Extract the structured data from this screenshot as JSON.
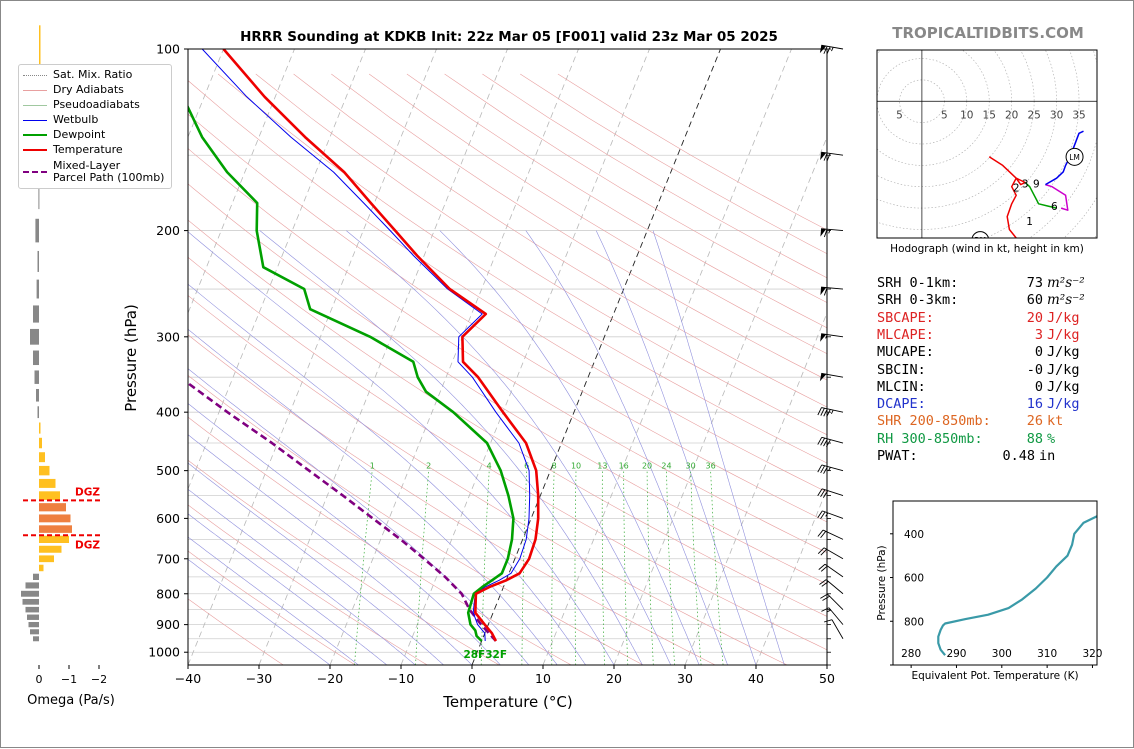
{
  "header": {
    "title": "HRRR Sounding at KDKB Init: 22z Mar 05 [F001] valid 23z Mar 05 2025",
    "brand": "TROPICALTIDBITS.COM"
  },
  "legend": {
    "items": [
      {
        "label": "Sat. Mix. Ratio",
        "color": "#888888",
        "style": "dotted"
      },
      {
        "label": "Dry Adiabats",
        "color": "#e8a0a0",
        "style": "solid"
      },
      {
        "label": "Pseudoadiabats",
        "color": "#a0c8a0",
        "style": "solid"
      },
      {
        "label": "Wetbulb",
        "color": "#0000ee",
        "style": "solid"
      },
      {
        "label": "Dewpoint",
        "color": "#00a000",
        "style": "solid"
      },
      {
        "label": "Temperature",
        "color": "#ee0000",
        "style": "solid"
      },
      {
        "label": "Mixed-Layer",
        "color": "#800080",
        "style": "dashed"
      },
      {
        "label": "Parcel Path (100mb)",
        "color": "",
        "style": "none"
      }
    ]
  },
  "chart_data": [
    {
      "type": "line",
      "name": "skewt",
      "xlabel": "Temperature (°C)",
      "ylabel": "Pressure (hPa)",
      "xlim": [
        -40,
        50
      ],
      "ylim": [
        1050,
        100
      ],
      "y_scale": "log",
      "x_ticks": [
        -40,
        -30,
        -20,
        -10,
        0,
        10,
        20,
        30,
        40,
        50
      ],
      "x_tick_labels": [
        "−40",
        "−30",
        "−20",
        "−10",
        "0",
        "10",
        "20",
        "30",
        "40",
        "50"
      ],
      "y_ticks": [
        100,
        200,
        300,
        400,
        500,
        600,
        700,
        800,
        900,
        1000
      ],
      "y_tick_labels": [
        "100",
        "200",
        "300",
        "400",
        "500",
        "600",
        "700",
        "800",
        "900",
        "1000"
      ],
      "mixing_ratio_labels": [
        "1",
        "2",
        "4",
        "6",
        "8",
        "10",
        "13",
        "16",
        "20",
        "24",
        "30",
        "36"
      ],
      "mixing_ratio_values": [
        1,
        2,
        4,
        6,
        8,
        10,
        13,
        16,
        20,
        24,
        30,
        36
      ],
      "series": [
        {
          "key": "temperature",
          "color": "#ee0000",
          "p": [
            958,
            930,
            900,
            860,
            800,
            780,
            760,
            740,
            700,
            650,
            600,
            550,
            500,
            450,
            400,
            350,
            330,
            300,
            275,
            250,
            220,
            200,
            180,
            160,
            140,
            120,
            100
          ],
          "t": [
            2.0,
            1.0,
            -0.5,
            -2.5,
            -3.5,
            -2.0,
            0.0,
            1.5,
            2.0,
            1.8,
            1.0,
            -0.3,
            -2.0,
            -5.0,
            -10.0,
            -15.5,
            -18.5,
            -20.0,
            -18.0,
            -24.5,
            -31.0,
            -35.5,
            -40.5,
            -46.0,
            -53.5,
            -61.5,
            -70.0
          ]
        },
        {
          "key": "wetbulb",
          "color": "#0000ee",
          "p": [
            958,
            930,
            900,
            860,
            800,
            780,
            760,
            740,
            700,
            650,
            600,
            550,
            500,
            450,
            400,
            350,
            330,
            300,
            275,
            250,
            220,
            200,
            180,
            160,
            140,
            120,
            100
          ],
          "t": [
            0.5,
            0.0,
            -1.5,
            -2.8,
            -3.6,
            -2.6,
            -1.0,
            0.3,
            0.7,
            0.5,
            -0.3,
            -1.5,
            -3.0,
            -6.0,
            -11.0,
            -16.3,
            -19.2,
            -20.5,
            -18.5,
            -24.8,
            -31.5,
            -36.2,
            -41.5,
            -47.5,
            -55.5,
            -64.0,
            -73.0
          ]
        },
        {
          "key": "dewpoint",
          "color": "#00a000",
          "p": [
            958,
            940,
            920,
            900,
            860,
            800,
            780,
            760,
            740,
            700,
            650,
            600,
            550,
            500,
            450,
            400,
            370,
            350,
            330,
            300,
            270,
            250,
            230,
            200,
            180,
            160,
            140,
            120,
            100
          ],
          "t": [
            0.0,
            -1.0,
            -1.5,
            -2.5,
            -3.5,
            -3.8,
            -3.0,
            -2.0,
            -1.0,
            -1.0,
            -1.5,
            -2.5,
            -4.5,
            -7.0,
            -10.5,
            -17.0,
            -22.0,
            -24.0,
            -25.5,
            -33.0,
            -43.0,
            -45.0,
            -52.0,
            -55.0,
            -56.5,
            -62.5,
            -68.0,
            -73.0,
            -79.0
          ]
        },
        {
          "key": "parcel",
          "color": "#800080",
          "p": [
            958,
            900,
            850,
            800,
            750,
            700,
            650,
            600,
            550,
            500,
            450,
            400,
            350,
            300,
            285
          ],
          "t": [
            2.0,
            -1.0,
            -3.5,
            -5.5,
            -8.8,
            -12.8,
            -17.2,
            -22.3,
            -27.8,
            -34.0,
            -40.8,
            -48.8,
            -57.5,
            -67.5,
            -70.8
          ]
        }
      ],
      "surface_label": "28F32F",
      "wind_barbs": {
        "p": [
          100,
          150,
          200,
          250,
          300,
          350,
          400,
          450,
          500,
          550,
          600,
          650,
          700,
          750,
          800,
          850,
          900,
          950
        ],
        "speed_kt": [
          75,
          70,
          65,
          60,
          55,
          50,
          45,
          40,
          35,
          30,
          25,
          20,
          20,
          20,
          20,
          20,
          15,
          10
        ],
        "direction_deg": [
          260,
          262,
          265,
          265,
          262,
          260,
          258,
          255,
          255,
          252,
          250,
          245,
          240,
          235,
          230,
          225,
          220,
          210
        ]
      }
    },
    {
      "type": "bar",
      "name": "omega",
      "xlabel": "Omega (Pa/s)",
      "x_ticks": [
        0,
        -1,
        -2
      ],
      "x_tick_labels": [
        "0",
        "−1",
        "−2"
      ],
      "xlim": [
        1.0,
        -2.8
      ],
      "ylim": [
        1050,
        100
      ],
      "p": [
        100,
        125,
        150,
        175,
        200,
        225,
        250,
        275,
        300,
        325,
        350,
        375,
        400,
        425,
        450,
        475,
        500,
        525,
        550,
        575,
        600,
        625,
        650,
        675,
        700,
        725,
        750,
        775,
        800,
        825,
        850,
        875,
        900,
        925,
        950
      ],
      "omega": [
        -0.05,
        -0.03,
        0.1,
        0.02,
        0.12,
        0.05,
        0.08,
        0.2,
        0.3,
        0.2,
        0.15,
        0.1,
        0.05,
        -0.05,
        -0.1,
        -0.2,
        -0.35,
        -0.55,
        -0.7,
        -0.9,
        -1.05,
        -1.1,
        -1.0,
        -0.75,
        -0.5,
        -0.15,
        0.2,
        0.45,
        0.6,
        0.55,
        0.45,
        0.4,
        0.35,
        0.3,
        0.2
      ],
      "dgz": [
        {
          "p": 560,
          "label": "DGZ"
        },
        {
          "p": 640,
          "label": "DGZ"
        }
      ]
    },
    {
      "type": "line",
      "name": "hodograph",
      "caption": "Hodograph (wind in kt, height in km)",
      "x_ticks": [
        -5,
        5,
        10,
        15,
        20,
        25,
        30,
        35
      ],
      "x_tick_labels": [
        "5",
        "5",
        "10",
        "15",
        "20",
        "25",
        "30",
        "35"
      ],
      "xlim": [
        -10,
        39
      ],
      "ylim": [
        -32,
        12
      ],
      "segments": [
        {
          "color": "#ee0000",
          "points": [
            [
              21,
              -32
            ],
            [
              19.5,
              -30
            ],
            [
              19,
              -27
            ],
            [
              20,
              -24
            ],
            [
              21,
              -22
            ],
            [
              20,
              -20
            ],
            [
              21,
              -18
            ],
            [
              22,
              -19.5
            ],
            [
              23,
              -19
            ],
            [
              21,
              -18
            ],
            [
              18,
              -15
            ],
            [
              15,
              -13
            ]
          ]
        },
        {
          "color": "#00a000",
          "points": [
            [
              23,
              -19
            ],
            [
              24,
              -20
            ],
            [
              25.5,
              -23
            ],
            [
              26,
              -24
            ],
            [
              28,
              -24.5
            ],
            [
              30,
              -25
            ]
          ]
        },
        {
          "color": "#cc00cc",
          "points": [
            [
              27.5,
              -19.5
            ],
            [
              29,
              -20
            ],
            [
              32,
              -22
            ],
            [
              32.5,
              -25.5
            ],
            [
              31,
              -25
            ]
          ]
        },
        {
          "color": "#0000ee",
          "points": [
            [
              27.5,
              -19.5
            ],
            [
              30,
              -18
            ],
            [
              31.5,
              -16.5
            ],
            [
              32,
              -15
            ],
            [
              33,
              -13
            ],
            [
              35,
              -7.5
            ],
            [
              36,
              -7
            ]
          ]
        }
      ],
      "labels": [
        {
          "text": "1",
          "x": 24,
          "y": -28
        },
        {
          "text": "2",
          "x": 21,
          "y": -20.2
        },
        {
          "text": "3",
          "x": 23,
          "y": -19.3
        },
        {
          "text": "9",
          "x": 25.5,
          "y": -19.3
        },
        {
          "text": "6",
          "x": 29.5,
          "y": -24.5
        },
        {
          "text": "LM",
          "x": 34,
          "y": -13,
          "circled": true
        },
        {
          "text": "RM",
          "x": 13,
          "y": -32.5,
          "circled": true
        }
      ]
    },
    {
      "type": "line",
      "name": "theta_e",
      "xlabel": "Equivalent Pot. Temperature (K)",
      "ylabel": "Pressure (hPa)",
      "xlim": [
        276,
        321
      ],
      "ylim": [
        1000,
        250
      ],
      "x_ticks": [
        280,
        290,
        300,
        310,
        320
      ],
      "x_tick_labels": [
        "280",
        "290",
        "300",
        "310",
        "320"
      ],
      "y_ticks": [
        400,
        600,
        800,
        1000
      ],
      "y_tick_labels": [
        "400",
        "600",
        "800",
        ""
      ],
      "color": "#3a9aa8",
      "p": [
        955,
        930,
        900,
        870,
        840,
        820,
        810,
        790,
        770,
        740,
        700,
        650,
        600,
        550,
        500,
        450,
        400,
        350,
        320,
        300
      ],
      "theta": [
        287.5,
        286.5,
        286,
        286.0,
        286.5,
        287,
        287.5,
        292,
        297,
        301.5,
        304.5,
        307.5,
        310,
        312,
        314.5,
        315.5,
        316,
        318,
        321,
        324
      ]
    }
  ],
  "stats": [
    {
      "label": "SRH 0-1km:",
      "value": "73",
      "unit": "m²s⁻²",
      "color": "#000000"
    },
    {
      "label": "SRH 0-3km:",
      "value": "60",
      "unit": "m²s⁻²",
      "color": "#000000"
    },
    {
      "label": "SBCAPE:",
      "value": "20",
      "unit": "J/kg",
      "color": "#dd2222"
    },
    {
      "label": "MLCAPE:",
      "value": "3",
      "unit": "J/kg",
      "color": "#dd2222"
    },
    {
      "label": "MUCAPE:",
      "value": "0",
      "unit": "J/kg",
      "color": "#000000"
    },
    {
      "label": "SBCIN:",
      "value": "-0",
      "unit": "J/kg",
      "color": "#000000"
    },
    {
      "label": "MLCIN:",
      "value": "0",
      "unit": "J/kg",
      "color": "#000000"
    },
    {
      "label": "DCAPE:",
      "value": "16",
      "unit": "J/kg",
      "color": "#2233cc"
    },
    {
      "label": "SHR 200-850mb:",
      "value": "26",
      "unit": "kt",
      "color": "#dd6622"
    },
    {
      "label": "RH 300-850mb:",
      "value": "88",
      "unit": "%",
      "color": "#119944"
    },
    {
      "label": "PWAT:",
      "value": "0.48",
      "unit": "in",
      "color": "#000000"
    }
  ]
}
